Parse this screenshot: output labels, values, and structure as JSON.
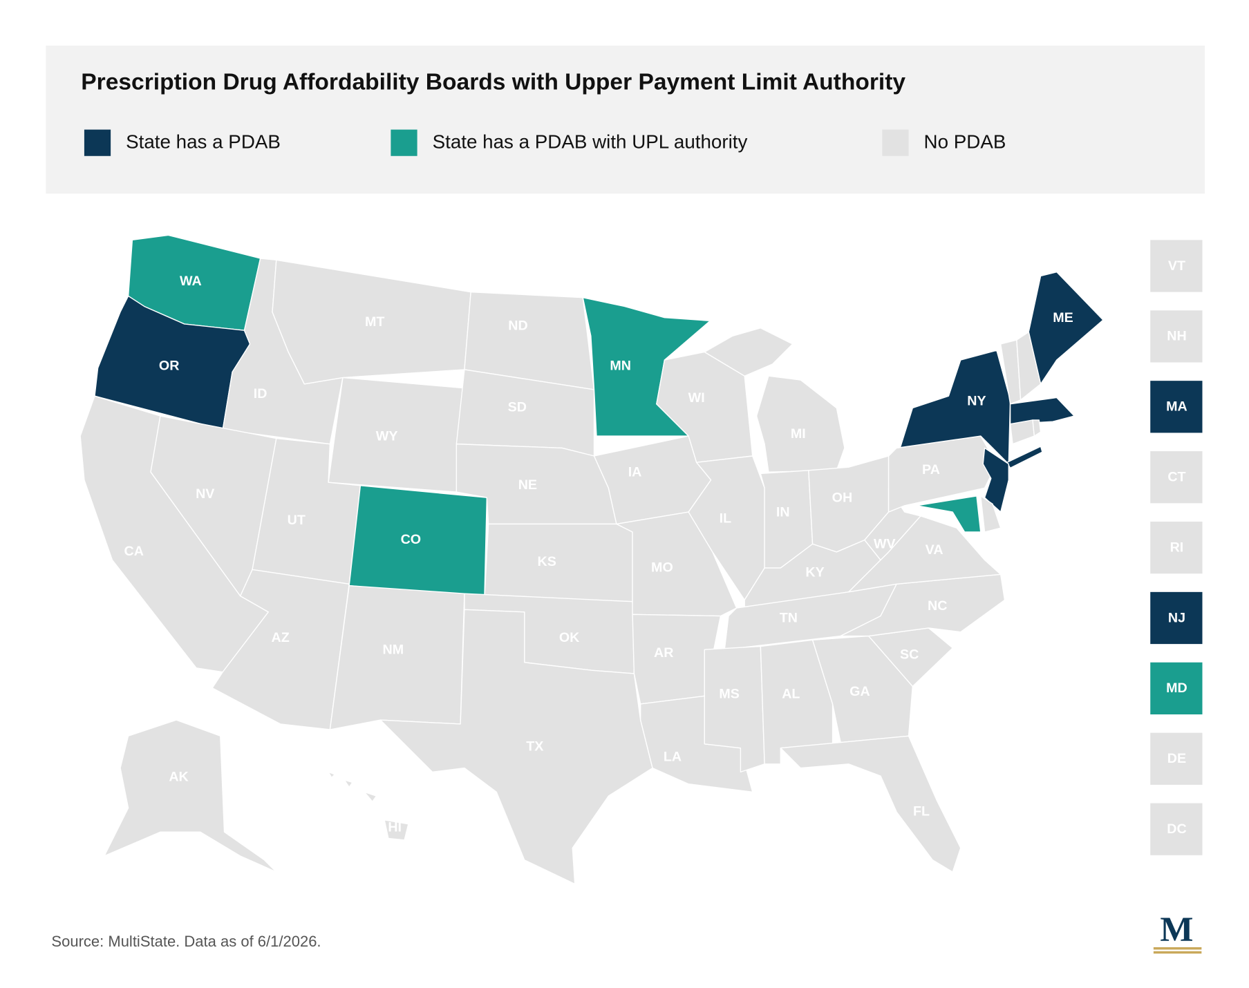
{
  "header": {
    "title": "Prescription Drug Affordability Boards with Upper Payment Limit Authority"
  },
  "legend": [
    {
      "label": "State has a PDAB",
      "color": "#0c3756"
    },
    {
      "label": "State has a PDAB with UPL authority",
      "color": "#1a9e8f"
    },
    {
      "label": "No PDAB",
      "color": "#e2e2e2"
    }
  ],
  "states": [
    {
      "label": "WA",
      "status": 1
    },
    {
      "label": "OR",
      "status": 0
    },
    {
      "label": "CA",
      "status": 2
    },
    {
      "label": "ID",
      "status": 2
    },
    {
      "label": "NV",
      "status": 2
    },
    {
      "label": "MT",
      "status": 2
    },
    {
      "label": "WY",
      "status": 2
    },
    {
      "label": "UT",
      "status": 2
    },
    {
      "label": "AZ",
      "status": 2
    },
    {
      "label": "CO",
      "status": 1
    },
    {
      "label": "NM",
      "status": 2
    },
    {
      "label": "ND",
      "status": 2
    },
    {
      "label": "SD",
      "status": 2
    },
    {
      "label": "NE",
      "status": 2
    },
    {
      "label": "KS",
      "status": 2
    },
    {
      "label": "OK",
      "status": 2
    },
    {
      "label": "TX",
      "status": 2
    },
    {
      "label": "MN",
      "status": 1
    },
    {
      "label": "IA",
      "status": 2
    },
    {
      "label": "MO",
      "status": 2
    },
    {
      "label": "AR",
      "status": 2
    },
    {
      "label": "LA",
      "status": 2
    },
    {
      "label": "WI",
      "status": 2
    },
    {
      "label": "IL",
      "status": 2
    },
    {
      "label": "MI",
      "status": 2
    },
    {
      "label": "IN",
      "status": 2
    },
    {
      "label": "OH",
      "status": 2
    },
    {
      "label": "KY",
      "status": 2
    },
    {
      "label": "TN",
      "status": 2
    },
    {
      "label": "MS",
      "status": 2
    },
    {
      "label": "AL",
      "status": 2
    },
    {
      "label": "GA",
      "status": 2
    },
    {
      "label": "FL",
      "status": 2
    },
    {
      "label": "SC",
      "status": 2
    },
    {
      "label": "NC",
      "status": 2
    },
    {
      "label": "VA",
      "status": 2
    },
    {
      "label": "WV",
      "status": 2
    },
    {
      "label": "PA",
      "status": 2
    },
    {
      "label": "NY",
      "status": 0
    },
    {
      "label": "ME",
      "status": 0
    },
    {
      "label": "AK",
      "status": 2
    },
    {
      "label": "HI",
      "status": 2
    }
  ],
  "small_states": [
    {
      "label": "VT",
      "status": 2
    },
    {
      "label": "NH",
      "status": 2
    },
    {
      "label": "MA",
      "status": 0
    },
    {
      "label": "CT",
      "status": 2
    },
    {
      "label": "RI",
      "status": 2
    },
    {
      "label": "NJ",
      "status": 0
    },
    {
      "label": "MD",
      "status": 1
    },
    {
      "label": "DE",
      "status": 2
    },
    {
      "label": "DC",
      "status": 2
    }
  ],
  "footer": {
    "source": "Source: MultiState. Data as of 6/1/2026.",
    "logo": "M"
  }
}
